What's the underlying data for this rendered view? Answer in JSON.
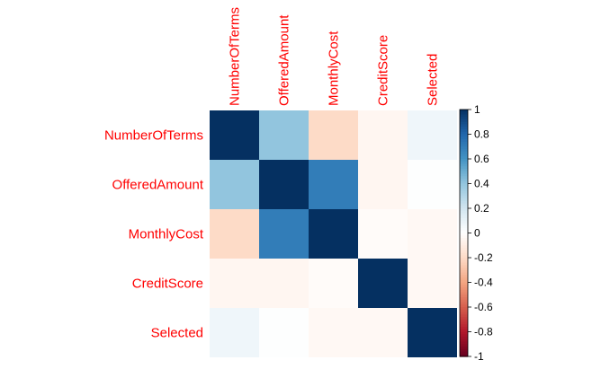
{
  "chart_data": {
    "type": "heatmap",
    "title": "",
    "variables": [
      "NumberOfTerms",
      "OfferedAmount",
      "MonthlyCost",
      "CreditScore",
      "Selected"
    ],
    "matrix": [
      [
        1.0,
        0.4,
        -0.2,
        -0.05,
        0.07
      ],
      [
        0.4,
        1.0,
        0.7,
        -0.05,
        0.01
      ],
      [
        -0.2,
        0.7,
        1.0,
        -0.02,
        -0.04
      ],
      [
        -0.05,
        -0.05,
        -0.02,
        1.0,
        -0.04
      ],
      [
        0.07,
        0.01,
        -0.04,
        -0.04,
        1.0
      ]
    ],
    "colorbar": {
      "min": -1,
      "max": 1,
      "ticks": [
        1,
        0.8,
        0.6,
        0.4,
        0.2,
        0,
        -0.2,
        -0.4,
        -0.6,
        -0.8,
        -1
      ],
      "tick_labels": [
        "1",
        "0.8",
        "0.6",
        "0.4",
        "0.2",
        "0",
        "-0.2",
        "-0.4",
        "-0.6",
        "-0.8",
        "-1"
      ],
      "palette": [
        "#67001F",
        "#B2182B",
        "#D6604D",
        "#F4A582",
        "#FDDBC7",
        "#FFFFFF",
        "#D1E5F0",
        "#92C5DE",
        "#4393C3",
        "#2166AC",
        "#053061"
      ]
    },
    "label_color": "#FF0000",
    "grid": false
  }
}
